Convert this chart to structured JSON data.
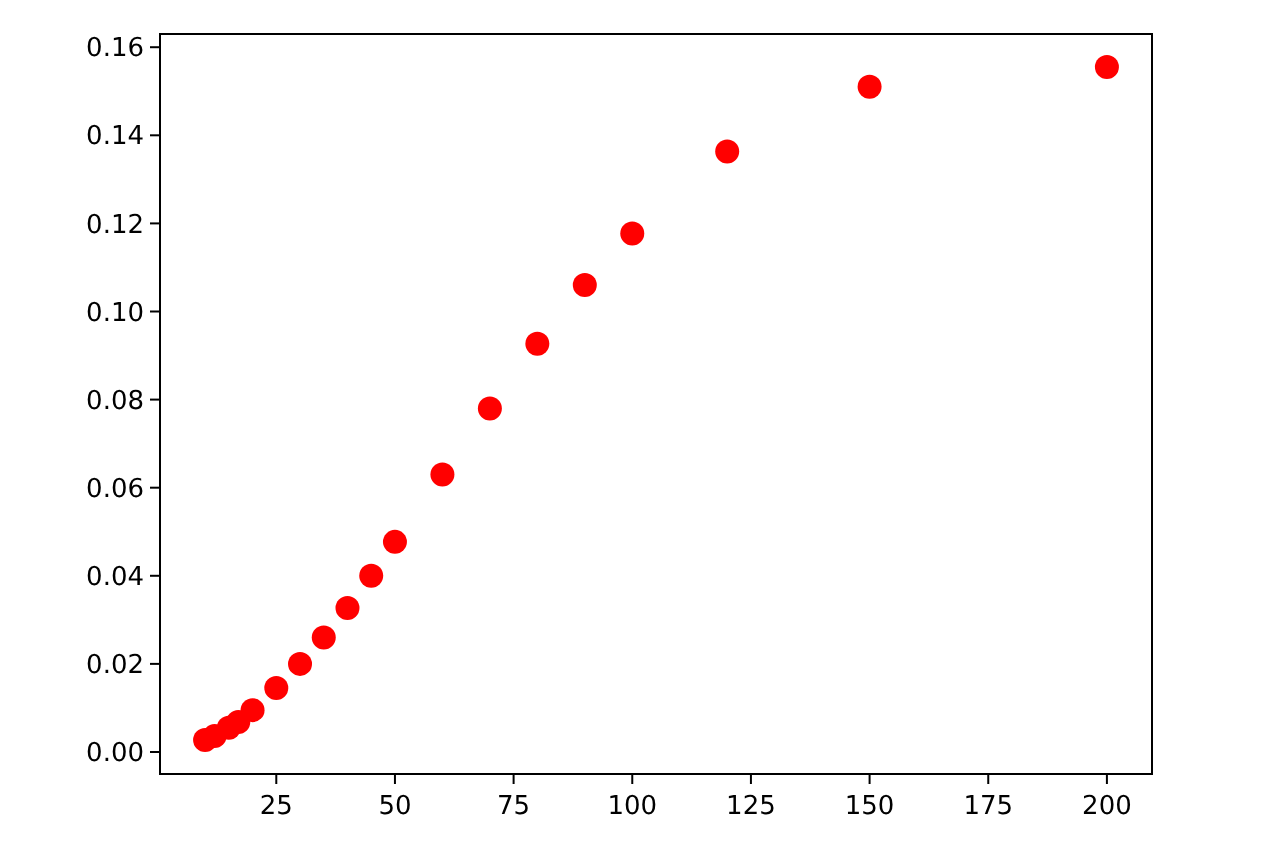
{
  "chart_data": {
    "type": "scatter",
    "color": "#ff0000",
    "marker": "circle",
    "x": [
      10,
      12,
      15,
      17,
      20,
      25,
      30,
      35,
      40,
      45,
      50,
      60,
      70,
      80,
      90,
      100,
      120,
      150,
      200
    ],
    "values": [
      0.0027,
      0.0036,
      0.0055,
      0.0068,
      0.0095,
      0.0145,
      0.02,
      0.026,
      0.0327,
      0.04,
      0.0477,
      0.063,
      0.078,
      0.0927,
      0.106,
      0.1177,
      0.1363,
      0.151,
      0.1555
    ],
    "xlim": [
      0.5,
      209.5
    ],
    "ylim": [
      -0.005,
      0.163
    ],
    "xticks": [
      25,
      50,
      75,
      100,
      125,
      150,
      175,
      200
    ],
    "yticks": [
      {
        "value": 0,
        "label": "0.00"
      },
      {
        "value": 0.02,
        "label": "0.02"
      },
      {
        "value": 0.04,
        "label": "0.04"
      },
      {
        "value": 0.06,
        "label": "0.06"
      },
      {
        "value": 0.08,
        "label": "0.08"
      },
      {
        "value": 0.1,
        "label": "0.10"
      },
      {
        "value": 0.12,
        "label": "0.12"
      },
      {
        "value": 0.14,
        "label": "0.14"
      },
      {
        "value": 0.16,
        "label": "0.16"
      }
    ]
  }
}
